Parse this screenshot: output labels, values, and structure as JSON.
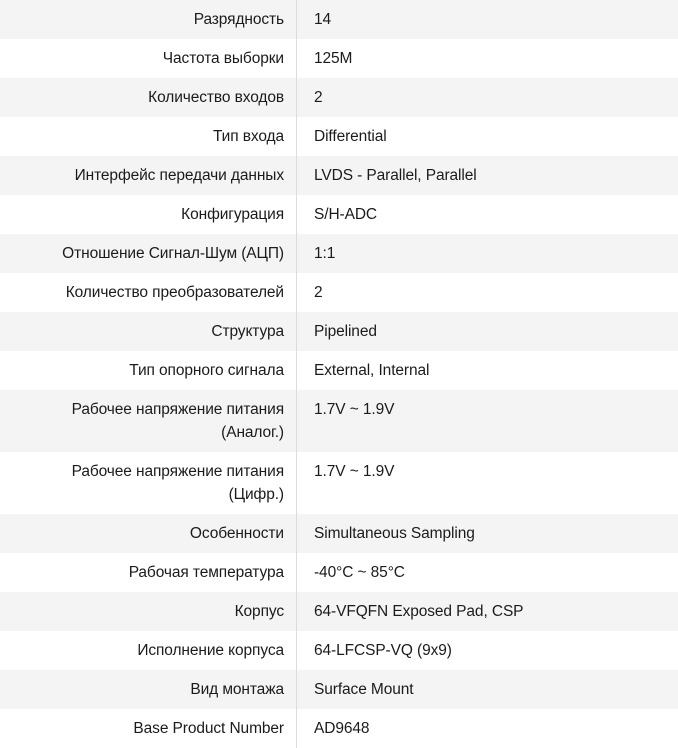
{
  "table": {
    "stripe_color": "#f4f4f4",
    "row_color": "#ffffff",
    "divider_color": "#dcdcdc",
    "text_color": "#1b1b1b",
    "rows": [
      {
        "label": "Разрядность",
        "value": "14"
      },
      {
        "label": "Частота выборки",
        "value": "125M"
      },
      {
        "label": "Количество входов",
        "value": "2"
      },
      {
        "label": "Тип входа",
        "value": "Differential"
      },
      {
        "label": "Интерфейс передачи данных",
        "value": "LVDS - Parallel, Parallel"
      },
      {
        "label": "Конфигурация",
        "value": "S/H-ADC"
      },
      {
        "label": "Отношение Сигнал-Шум (АЦП)",
        "value": "1:1"
      },
      {
        "label": "Количество преобразователей",
        "value": "2"
      },
      {
        "label": "Структура",
        "value": "Pipelined"
      },
      {
        "label": "Тип опорного сигнала",
        "value": "External, Internal"
      },
      {
        "label": "Рабочее напряжение питания\n(Аналог.)",
        "value": "1.7V ~ 1.9V"
      },
      {
        "label": "Рабочее напряжение питания\n(Цифр.)",
        "value": "1.7V ~ 1.9V"
      },
      {
        "label": "Особенности",
        "value": "Simultaneous Sampling"
      },
      {
        "label": "Рабочая температура",
        "value": "-40°C ~ 85°C"
      },
      {
        "label": "Корпус",
        "value": "64-VFQFN Exposed Pad, CSP"
      },
      {
        "label": "Исполнение корпуса",
        "value": "64-LFCSP-VQ (9x9)"
      },
      {
        "label": "Вид монтажа",
        "value": "Surface Mount"
      },
      {
        "label": "Base Product Number",
        "value": "AD9648"
      }
    ]
  }
}
